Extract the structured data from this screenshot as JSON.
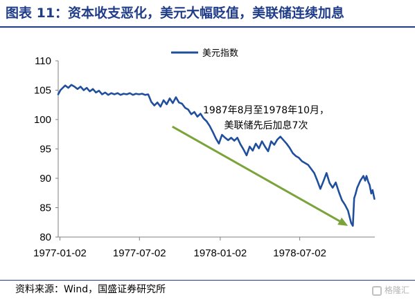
{
  "header": {
    "title": "图表 11：资本收支恶化，美元大幅贬值，美联储连续加息",
    "title_color": "#1f3c88",
    "source": "资料来源：Wind，国盛证券研究所",
    "watermark": "格隆汇"
  },
  "chart_data": {
    "type": "line",
    "title": "",
    "xlabel": "",
    "ylabel": "",
    "ylim": [
      80,
      110
    ],
    "y_ticks": [
      80,
      85,
      90,
      95,
      100,
      105,
      110
    ],
    "x_ticks": [
      "1977-01-02",
      "1977-07-02",
      "1978-01-02",
      "1978-07-02"
    ],
    "xlim": [
      "1976-12-29",
      "1978-12-20"
    ],
    "grid": false,
    "legend": "top",
    "series": [
      {
        "name": "美元指数",
        "color": "#1f4e9c",
        "points": [
          [
            "1976-12-29",
            104.3
          ],
          [
            "1977-01-03",
            105.0
          ],
          [
            "1977-01-07",
            105.3
          ],
          [
            "1977-01-14",
            105.8
          ],
          [
            "1977-01-21",
            105.4
          ],
          [
            "1977-01-28",
            105.9
          ],
          [
            "1977-02-04",
            105.6
          ],
          [
            "1977-02-11",
            105.2
          ],
          [
            "1977-02-18",
            105.6
          ],
          [
            "1977-02-25",
            105.0
          ],
          [
            "1977-03-04",
            105.4
          ],
          [
            "1977-03-11",
            104.8
          ],
          [
            "1977-03-18",
            105.2
          ],
          [
            "1977-03-25",
            104.6
          ],
          [
            "1977-04-01",
            104.9
          ],
          [
            "1977-04-08",
            104.3
          ],
          [
            "1977-04-15",
            104.6
          ],
          [
            "1977-04-22",
            104.2
          ],
          [
            "1977-04-29",
            104.5
          ],
          [
            "1977-05-06",
            104.3
          ],
          [
            "1977-05-13",
            104.5
          ],
          [
            "1977-05-20",
            104.2
          ],
          [
            "1977-05-27",
            104.4
          ],
          [
            "1977-06-03",
            104.3
          ],
          [
            "1977-06-10",
            104.5
          ],
          [
            "1977-06-17",
            104.2
          ],
          [
            "1977-06-24",
            104.4
          ],
          [
            "1977-07-01",
            104.3
          ],
          [
            "1977-07-08",
            104.4
          ],
          [
            "1977-07-15",
            104.2
          ],
          [
            "1977-07-22",
            104.3
          ],
          [
            "1977-07-29",
            103.0
          ],
          [
            "1977-08-05",
            102.4
          ],
          [
            "1977-08-12",
            102.9
          ],
          [
            "1977-08-19",
            102.2
          ],
          [
            "1977-08-26",
            103.3
          ],
          [
            "1977-09-02",
            102.6
          ],
          [
            "1977-09-09",
            103.6
          ],
          [
            "1977-09-16",
            102.8
          ],
          [
            "1977-09-23",
            103.8
          ],
          [
            "1977-09-30",
            102.9
          ],
          [
            "1977-10-07",
            102.7
          ],
          [
            "1977-10-14",
            102.0
          ],
          [
            "1977-10-21",
            101.7
          ],
          [
            "1977-10-28",
            100.9
          ],
          [
            "1977-11-04",
            101.3
          ],
          [
            "1977-11-11",
            100.5
          ],
          [
            "1977-11-18",
            101.0
          ],
          [
            "1977-11-25",
            100.2
          ],
          [
            "1977-12-02",
            99.7
          ],
          [
            "1977-12-09",
            98.9
          ],
          [
            "1977-12-16",
            97.9
          ],
          [
            "1977-12-23",
            96.8
          ],
          [
            "1977-12-30",
            95.9
          ],
          [
            "1978-01-06",
            97.4
          ],
          [
            "1978-01-13",
            96.9
          ],
          [
            "1978-01-20",
            96.5
          ],
          [
            "1978-01-27",
            96.9
          ],
          [
            "1978-02-03",
            96.4
          ],
          [
            "1978-02-10",
            96.9
          ],
          [
            "1978-02-17",
            95.8
          ],
          [
            "1978-02-24",
            94.9
          ],
          [
            "1978-03-03",
            93.9
          ],
          [
            "1978-03-10",
            95.4
          ],
          [
            "1978-03-17",
            94.7
          ],
          [
            "1978-03-24",
            95.9
          ],
          [
            "1978-03-31",
            95.1
          ],
          [
            "1978-04-07",
            96.3
          ],
          [
            "1978-04-14",
            95.4
          ],
          [
            "1978-04-21",
            94.6
          ],
          [
            "1978-04-28",
            96.3
          ],
          [
            "1978-05-05",
            95.7
          ],
          [
            "1978-05-12",
            96.6
          ],
          [
            "1978-05-19",
            97.1
          ],
          [
            "1978-05-26",
            96.5
          ],
          [
            "1978-06-02",
            95.9
          ],
          [
            "1978-06-09",
            95.2
          ],
          [
            "1978-06-16",
            94.3
          ],
          [
            "1978-06-23",
            93.8
          ],
          [
            "1978-06-30",
            93.5
          ],
          [
            "1978-07-07",
            92.9
          ],
          [
            "1978-07-14",
            92.6
          ],
          [
            "1978-07-21",
            92.3
          ],
          [
            "1978-07-28",
            91.6
          ],
          [
            "1978-08-04",
            90.9
          ],
          [
            "1978-08-11",
            89.6
          ],
          [
            "1978-08-18",
            88.2
          ],
          [
            "1978-08-25",
            89.5
          ],
          [
            "1978-09-01",
            90.9
          ],
          [
            "1978-09-08",
            89.2
          ],
          [
            "1978-09-15",
            88.4
          ],
          [
            "1978-09-22",
            89.3
          ],
          [
            "1978-09-29",
            87.7
          ],
          [
            "1978-10-06",
            86.3
          ],
          [
            "1978-10-13",
            85.5
          ],
          [
            "1978-10-20",
            84.5
          ],
          [
            "1978-10-27",
            82.4
          ],
          [
            "1978-10-31",
            81.9
          ],
          [
            "1978-11-03",
            86.6
          ],
          [
            "1978-11-06",
            87.3
          ],
          [
            "1978-11-10",
            88.4
          ],
          [
            "1978-11-17",
            89.6
          ],
          [
            "1978-11-24",
            90.4
          ],
          [
            "1978-11-28",
            89.6
          ],
          [
            "1978-12-01",
            90.4
          ],
          [
            "1978-12-05",
            89.4
          ],
          [
            "1978-12-08",
            88.9
          ],
          [
            "1978-12-12",
            87.4
          ],
          [
            "1978-12-15",
            88.0
          ],
          [
            "1978-12-19",
            86.5
          ]
        ]
      }
    ],
    "annotation": {
      "lines": [
        "1987年8月至1978年10月，",
        "美联储先后加息7次"
      ],
      "arrow_color": "#7aa43b",
      "arrow_from": [
        "1977-09-15",
        98.8
      ],
      "arrow_to": [
        "1978-10-20",
        81.9
      ]
    }
  }
}
